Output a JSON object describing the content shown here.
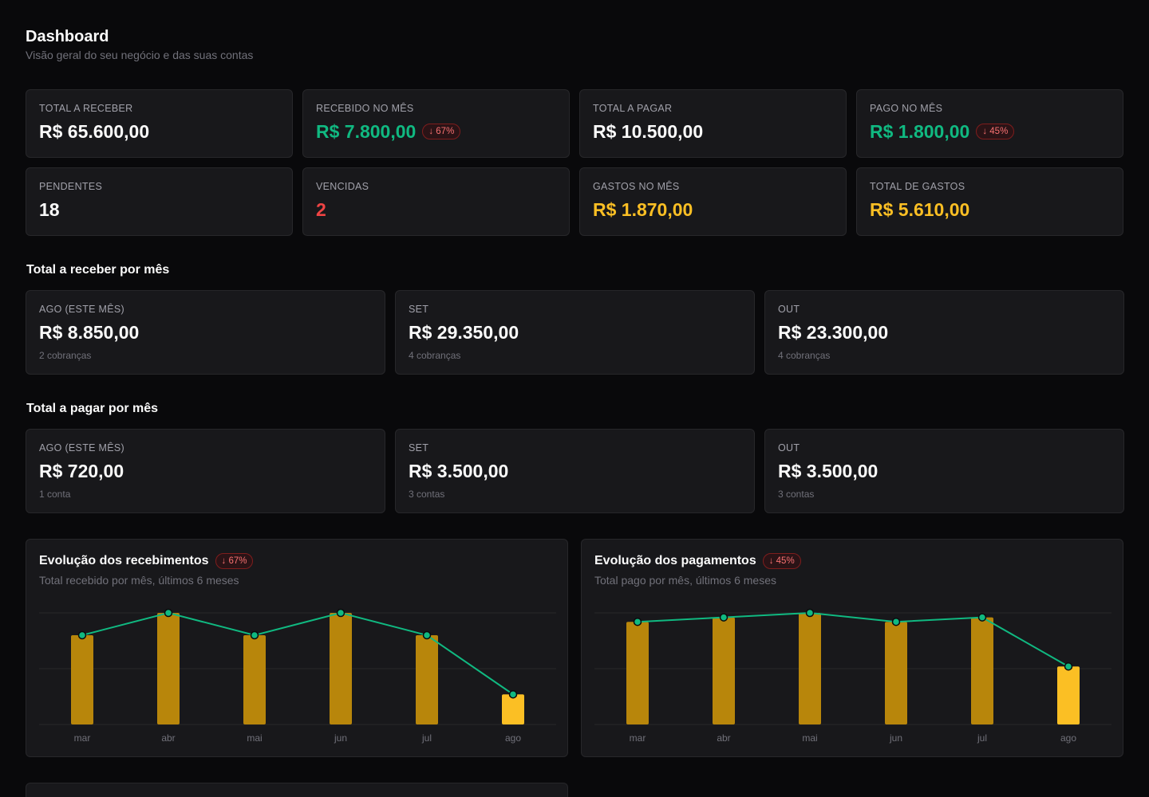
{
  "header": {
    "title": "Dashboard",
    "subtitle": "Visão geral do seu negócio e das suas contas"
  },
  "stats": [
    {
      "label": "TOTAL A RECEBER",
      "value": "R$ 65.600,00",
      "color": "white",
      "badge": ""
    },
    {
      "label": "RECEBIDO NO MÊS",
      "value": "R$ 7.800,00",
      "color": "green",
      "badge": "↓ 67%"
    },
    {
      "label": "TOTAL A PAGAR",
      "value": "R$ 10.500,00",
      "color": "white",
      "badge": ""
    },
    {
      "label": "PAGO NO MÊS",
      "value": "R$ 1.800,00",
      "color": "green",
      "badge": "↓ 45%"
    },
    {
      "label": "PENDENTES",
      "value": "18",
      "color": "white",
      "badge": ""
    },
    {
      "label": "VENCIDAS",
      "value": "2",
      "color": "red",
      "badge": ""
    },
    {
      "label": "GASTOS NO MÊS",
      "value": "R$ 1.870,00",
      "color": "amber",
      "badge": ""
    },
    {
      "label": "TOTAL DE GASTOS",
      "value": "R$ 5.610,00",
      "color": "amber",
      "badge": ""
    }
  ],
  "receivables": {
    "title": "Total a receber por mês",
    "months": [
      {
        "label": "AGO (ESTE MÊS)",
        "value": "R$ 8.850,00",
        "count": "2 cobranças"
      },
      {
        "label": "SET",
        "value": "R$ 29.350,00",
        "count": "4 cobranças"
      },
      {
        "label": "OUT",
        "value": "R$ 23.300,00",
        "count": "4 cobranças"
      }
    ]
  },
  "payables": {
    "title": "Total a pagar por mês",
    "months": [
      {
        "label": "AGO (ESTE MÊS)",
        "value": "R$ 720,00",
        "count": "1 conta"
      },
      {
        "label": "SET",
        "value": "R$ 3.500,00",
        "count": "3 contas"
      },
      {
        "label": "OUT",
        "value": "R$ 3.500,00",
        "count": "3 contas"
      }
    ]
  },
  "colors": {
    "green": "#10b981",
    "red": "#ef4444",
    "amber": "#fbbf24",
    "bar": "#b8860b",
    "bar_current": "#fbbf24",
    "line": "#10b981"
  },
  "chart_data": [
    {
      "type": "bar",
      "title": "Evolução dos recebimentos",
      "badge": "↓ 67%",
      "subtitle": "Total recebido por mês, últimos 6 meses",
      "categories": [
        "mar",
        "abr",
        "mai",
        "jun",
        "jul",
        "ago"
      ],
      "values": [
        80,
        100,
        80,
        100,
        80,
        27
      ],
      "ylim": [
        0,
        100
      ],
      "grid": true,
      "line_overlay": true
    },
    {
      "type": "bar",
      "title": "Evolução dos pagamentos",
      "badge": "↓ 45%",
      "subtitle": "Total pago por mês, últimos 6 meses",
      "categories": [
        "mar",
        "abr",
        "mai",
        "jun",
        "jul",
        "ago"
      ],
      "values": [
        92,
        96,
        100,
        92,
        96,
        52
      ],
      "ylim": [
        0,
        100
      ],
      "grid": true,
      "line_overlay": true
    }
  ]
}
